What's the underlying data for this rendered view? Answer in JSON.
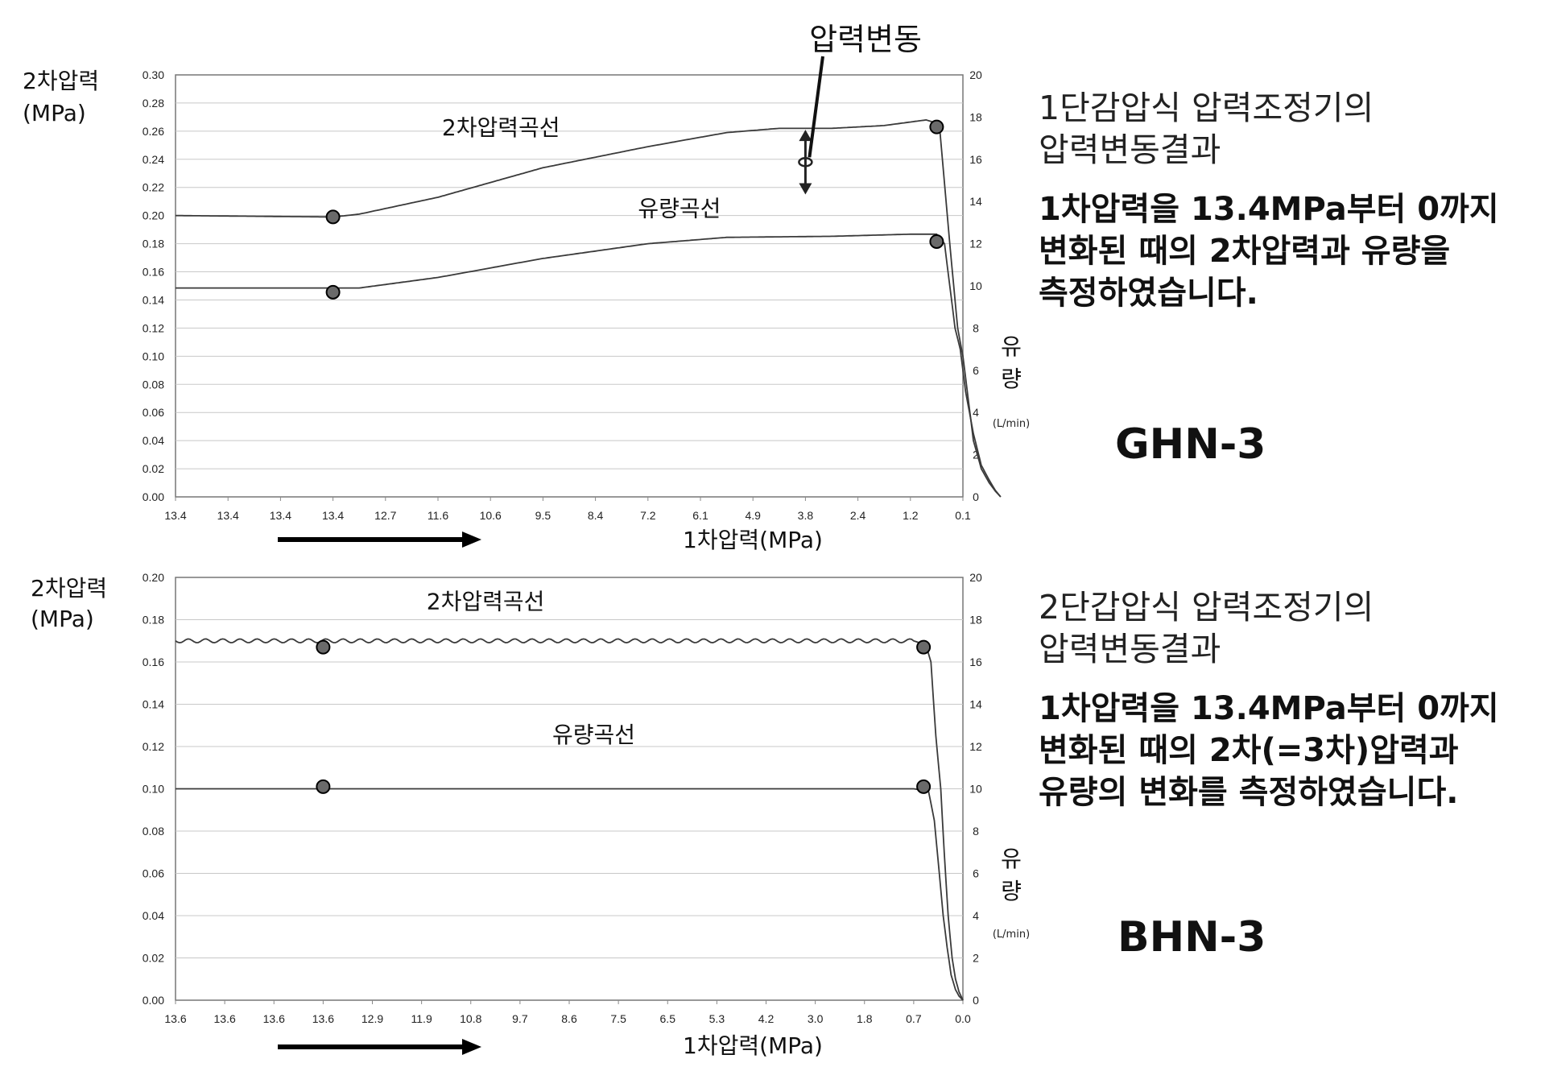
{
  "top_panel": {
    "heading": "1단감압식 압력조정기의\n압력변동결과",
    "description": "1차압력을 13.4MPa부터 0까지\n변화된 때의 2차압력과 유량을\n측정하였습니다.",
    "model": "GHN-3"
  },
  "bottom_panel": {
    "heading": "2단갑압식 압력조정기의\n압력변동결과",
    "description": "1차압력을 13.4MPa부터 0까지\n변화된 때의 2차(=3차)압력과\n유량의 변화를 측정하였습니다.",
    "model": "BHN-3"
  },
  "chart_data": [
    {
      "type": "line",
      "ylabel_lines": [
        "2차압력",
        "(MPa)"
      ],
      "y2label_lines": [
        "유",
        "량"
      ],
      "y2unit": "(L/min)",
      "xlabel": "1차압력(MPa)",
      "ylim": [
        0,
        0.3
      ],
      "y2lim": [
        0,
        20
      ],
      "yticks": [
        "0.00",
        "0.02",
        "0.04",
        "0.06",
        "0.08",
        "0.10",
        "0.12",
        "0.14",
        "0.16",
        "0.18",
        "0.20",
        "0.22",
        "0.24",
        "0.26",
        "0.28",
        "0.30"
      ],
      "y2ticks": [
        "0",
        "2",
        "4",
        "6",
        "8",
        "10",
        "12",
        "14",
        "16",
        "18",
        "20"
      ],
      "categories": [
        "13.4",
        "13.4",
        "13.4",
        "13.4",
        "12.7",
        "11.6",
        "10.6",
        "9.5",
        "8.4",
        "7.2",
        "6.1",
        "4.9",
        "3.8",
        "2.4",
        "1.2",
        "0.1"
      ],
      "grid": true,
      "annotation": "압력변동",
      "series": [
        {
          "name": "2차압력곡선",
          "axis": "left",
          "x": [
            0,
            3,
            3.5,
            5,
            7,
            9,
            10.5,
            11.5,
            12.5,
            13.5,
            14.3,
            14.55,
            14.75,
            14.9,
            15.0,
            15.1,
            15.2,
            15.35,
            15.5,
            15.62,
            15.72
          ],
          "y": [
            0.2,
            0.199,
            0.201,
            0.213,
            0.234,
            0.249,
            0.259,
            0.262,
            0.262,
            0.264,
            0.268,
            0.265,
            0.18,
            0.12,
            0.1,
            0.07,
            0.04,
            0.02,
            0.01,
            0.004,
            0.0
          ],
          "markers": [
            [
              3,
              0.199
            ],
            [
              14.5,
              0.263
            ]
          ],
          "label_anchor": [
            6.2,
            0.257
          ]
        },
        {
          "name": "유량곡선",
          "axis": "right",
          "x": [
            0,
            3,
            3.5,
            5,
            7,
            9,
            10.5,
            12.5,
            14.0,
            14.5,
            14.65,
            14.75,
            14.85,
            14.95,
            15.05,
            15.2,
            15.35,
            15.5,
            15.62,
            15.72
          ],
          "y": [
            9.9,
            9.9,
            9.9,
            10.4,
            11.3,
            12.0,
            12.3,
            12.35,
            12.45,
            12.45,
            12.0,
            10.0,
            8.0,
            7.0,
            5.0,
            3.0,
            1.5,
            0.8,
            0.3,
            0.0
          ],
          "markers": [
            [
              3,
              9.7
            ],
            [
              14.5,
              12.1
            ]
          ],
          "label_anchor": [
            9.6,
            13.3
          ]
        }
      ]
    },
    {
      "type": "line",
      "ylabel_lines": [
        "2차압력",
        "(MPa)"
      ],
      "y2label_lines": [
        "유",
        "량"
      ],
      "y2unit": "(L/min)",
      "xlabel": "1차압력(MPa)",
      "ylim": [
        0,
        0.2
      ],
      "y2lim": [
        0,
        20
      ],
      "yticks": [
        "0.00",
        "0.02",
        "0.04",
        "0.06",
        "0.08",
        "0.10",
        "0.12",
        "0.14",
        "0.16",
        "0.18",
        "0.20"
      ],
      "y2ticks": [
        "0",
        "2",
        "4",
        "6",
        "8",
        "10",
        "12",
        "14",
        "16",
        "18",
        "20"
      ],
      "categories": [
        "13.6",
        "13.6",
        "13.6",
        "13.6",
        "12.9",
        "11.9",
        "10.8",
        "9.7",
        "8.6",
        "7.5",
        "6.5",
        "5.3",
        "4.2",
        "3.0",
        "1.8",
        "0.7",
        "0.0"
      ],
      "grid": true,
      "series": [
        {
          "name": "2차압력곡선",
          "axis": "left",
          "x": [
            0,
            15.0,
            15.25,
            15.35,
            15.45,
            15.55,
            15.62,
            15.7,
            15.78,
            15.85,
            15.92,
            16.0
          ],
          "y": [
            0.17,
            0.17,
            0.168,
            0.16,
            0.125,
            0.1,
            0.07,
            0.04,
            0.02,
            0.01,
            0.004,
            0.0
          ],
          "wavy": true,
          "markers": [
            [
              3,
              0.167
            ],
            [
              15.2,
              0.167
            ]
          ],
          "label_anchor": [
            6.3,
            0.185
          ]
        },
        {
          "name": "유량곡선",
          "axis": "right",
          "x": [
            0,
            15.0,
            15.3,
            15.42,
            15.52,
            15.6,
            15.68,
            15.76,
            15.85,
            15.92,
            16.0
          ],
          "y": [
            10.0,
            10.0,
            9.9,
            8.5,
            6.0,
            4.0,
            2.5,
            1.2,
            0.5,
            0.2,
            0.0
          ],
          "markers": [
            [
              3,
              10.1
            ],
            [
              15.2,
              10.1
            ]
          ],
          "label_anchor": [
            8.5,
            12.2
          ]
        }
      ]
    }
  ]
}
